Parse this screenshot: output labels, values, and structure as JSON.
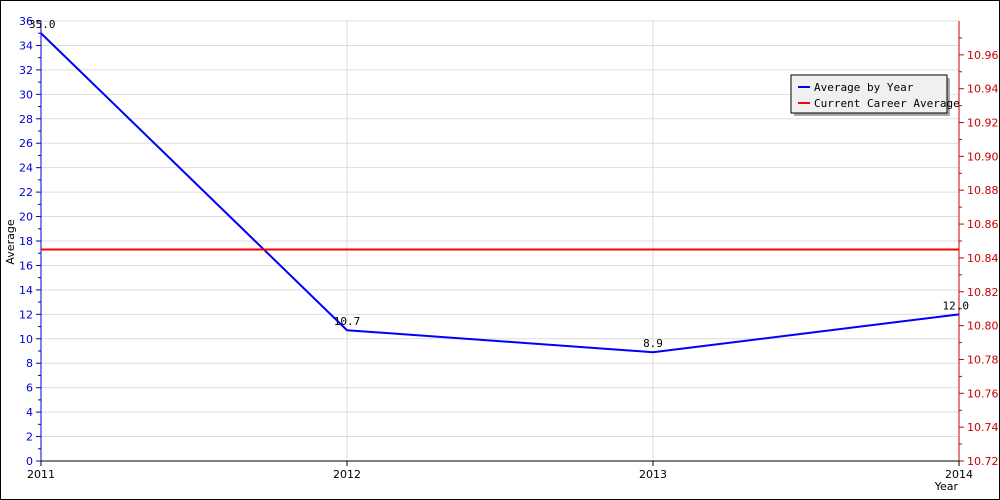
{
  "chart_data": {
    "type": "line",
    "title": "",
    "xlabel": "Year",
    "ylabel": "Average",
    "categories": [
      "2011",
      "2012",
      "2013",
      "2014"
    ],
    "series": [
      {
        "name": "Average by Year",
        "values": [
          35.0,
          10.7,
          8.9,
          12.0
        ],
        "labels": [
          "35.0",
          "10.7",
          "8.9",
          "12.0"
        ],
        "color": "#0000ff",
        "axis": "left"
      },
      {
        "name": "Current Career Average",
        "values": [
          10.845,
          10.845,
          10.845,
          10.845
        ],
        "color": "#ff0000",
        "axis": "right"
      }
    ],
    "ylim_left": [
      0,
      36
    ],
    "yticks_left": [
      "0",
      "2",
      "4",
      "6",
      "8",
      "10",
      "12",
      "14",
      "16",
      "18",
      "20",
      "22",
      "24",
      "26",
      "28",
      "30",
      "32",
      "34",
      "36"
    ],
    "ylim_right": [
      10.72,
      10.98
    ],
    "yticks_right": [
      "10.72",
      "10.74",
      "10.76",
      "10.78",
      "10.80",
      "10.82",
      "10.84",
      "10.86",
      "10.88",
      "10.90",
      "10.92",
      "10.94",
      "10.96"
    ],
    "left_axis_color": "#0000cc",
    "right_axis_color": "#cc0000",
    "grid": true,
    "legend_position": "top-right"
  }
}
